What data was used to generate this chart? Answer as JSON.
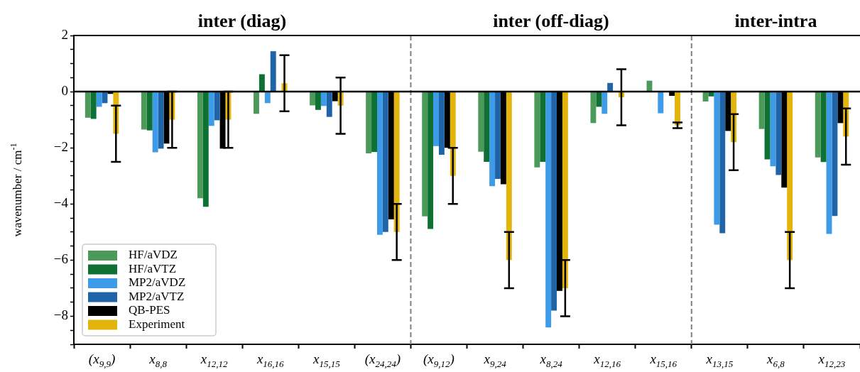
{
  "chart_data": {
    "type": "bar",
    "categories": [
      "(x$_{9,9}$)",
      "x$_{8,8}$",
      "x$_{12,12}$",
      "x$_{16,16}$",
      "x$_{15,15}$",
      "(x$_{24,24}$)",
      "(x$_{9,12}$)",
      "x$_{9,24}$",
      "x$_{8,24}$",
      "x$_{12,16}$",
      "x$_{15,16}$",
      "x$_{13,15}$",
      "x$_{6,8}$",
      "x$_{12,23}$"
    ],
    "series": [
      {
        "name": "HF/aVDZ",
        "color": "#4c9a5a",
        "values": [
          -0.93,
          -1.35,
          -3.8,
          -0.79,
          -0.49,
          -2.2,
          -4.44,
          -2.14,
          -2.7,
          -1.12,
          0.39,
          -0.35,
          -1.33,
          -2.34
        ]
      },
      {
        "name": "HF/aVTZ",
        "color": "#0e7033",
        "values": [
          -0.97,
          -1.38,
          -4.1,
          0.62,
          -0.65,
          -2.15,
          -4.89,
          -2.5,
          -2.5,
          -0.54,
          null,
          -0.17,
          -2.41,
          -2.51
        ]
      },
      {
        "name": "MP2/aVDZ",
        "color": "#3e9be8",
        "values": [
          -0.54,
          -2.16,
          -1.22,
          -0.41,
          -0.51,
          -5.1,
          -1.94,
          -3.37,
          -8.4,
          -0.79,
          -0.77,
          -4.74,
          -2.66,
          -5.07
        ]
      },
      {
        "name": "MP2/aVTZ",
        "color": "#2064a8",
        "values": [
          -0.41,
          -2.03,
          -1.02,
          1.44,
          -0.9,
          -5.0,
          -2.25,
          -3.11,
          -7.8,
          0.31,
          null,
          -5.04,
          -2.97,
          -4.43
        ]
      },
      {
        "name": "QB-PES",
        "color": "#000000",
        "values": [
          -0.08,
          -1.85,
          -2.03,
          null,
          -0.34,
          -4.55,
          -2.0,
          -3.3,
          -7.1,
          null,
          -0.15,
          -1.4,
          -3.42,
          -1.12
        ]
      },
      {
        "name": "Experiment",
        "color": "#e3b40c",
        "values": [
          -1.5,
          -1.0,
          -1.0,
          0.3,
          -0.5,
          -5.0,
          -3.0,
          -6.0,
          -7.0,
          -0.2,
          -1.2,
          -1.8,
          -6.0,
          -1.6
        ],
        "errors": [
          1,
          1,
          1,
          1,
          1,
          1,
          1,
          1,
          1,
          1,
          0.1,
          1,
          1,
          1
        ]
      }
    ],
    "ylim": [
      -9,
      2
    ],
    "yticks": [
      {
        "value": -9,
        "label": null
      },
      {
        "value": -8.5,
        "label": null
      },
      {
        "value": -8,
        "label": "−8"
      },
      {
        "value": -7.5,
        "label": null
      },
      {
        "value": -7,
        "label": null
      },
      {
        "value": -6.5,
        "label": null
      },
      {
        "value": -6,
        "label": "−6"
      },
      {
        "value": -5.5,
        "label": null
      },
      {
        "value": -5,
        "label": null
      },
      {
        "value": -4.5,
        "label": null
      },
      {
        "value": -4,
        "label": "−4"
      },
      {
        "value": -3.5,
        "label": null
      },
      {
        "value": -3,
        "label": null
      },
      {
        "value": -2.5,
        "label": null
      },
      {
        "value": -2,
        "label": "−2"
      },
      {
        "value": -1.5,
        "label": null
      },
      {
        "value": -1,
        "label": null
      },
      {
        "value": -0.5,
        "label": null
      },
      0,
      {
        "value": 0.5,
        "label": null
      },
      {
        "value": 1,
        "label": null
      },
      {
        "value": 1.5,
        "label": null
      },
      2
    ],
    "ylabel": "wavenumber / cm$^{-1}$",
    "legend": "bottom left",
    "ref_lines": [
      {
        "axis": "y",
        "value": 0,
        "color": "#000000",
        "line_style": "solid"
      }
    ],
    "annotations": [
      "inter (diag)",
      "inter (off-diag)",
      "inter-intra"
    ]
  }
}
